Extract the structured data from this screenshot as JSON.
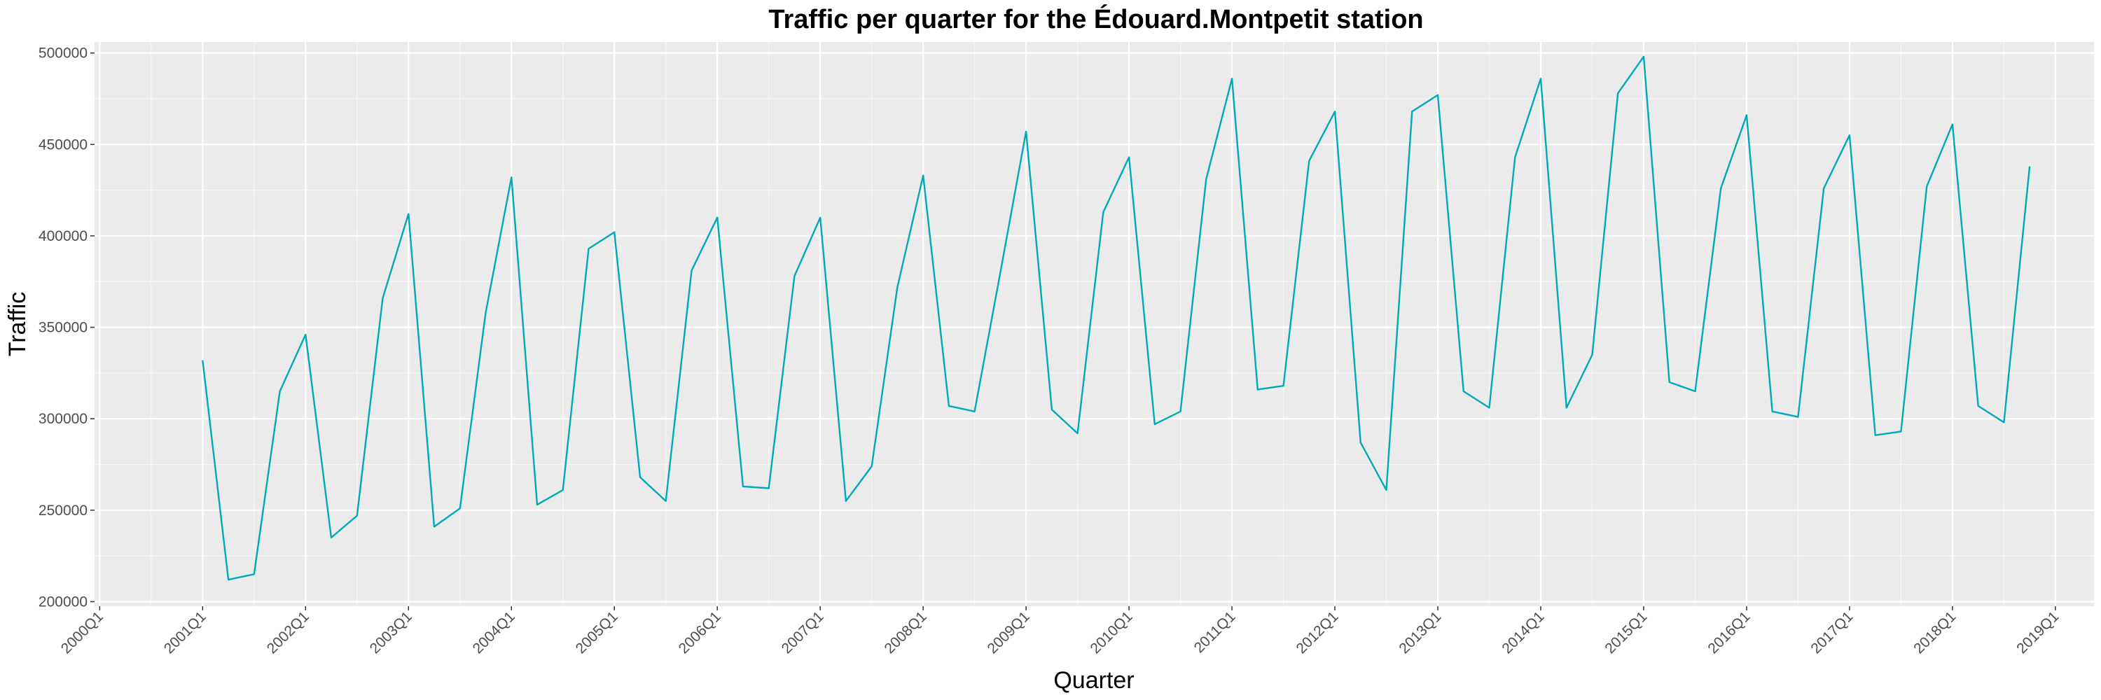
{
  "chart_data": {
    "type": "line",
    "title": "Traffic per quarter for the Édouard.Montpetit station",
    "xlabel": "Quarter",
    "ylabel": "Traffic",
    "ylim": [
      200000,
      500000
    ],
    "yticks": [
      200000,
      250000,
      300000,
      350000,
      400000,
      450000,
      500000
    ],
    "ytick_labels": [
      "200000",
      "250000",
      "300000",
      "350000",
      "400000",
      "450000",
      "500000"
    ],
    "xticks": [
      "2000Q1",
      "2001Q1",
      "2002Q1",
      "2003Q1",
      "2004Q1",
      "2005Q1",
      "2006Q1",
      "2007Q1",
      "2008Q1",
      "2009Q1",
      "2010Q1",
      "2011Q1",
      "2012Q1",
      "2013Q1",
      "2014Q1",
      "2015Q1",
      "2016Q1",
      "2017Q1",
      "2018Q1",
      "2019Q1"
    ],
    "grid": true,
    "legend": "none",
    "line_color": "#00a9b9",
    "panel_color": "#ebebeb",
    "x": [
      "2001Q1",
      "2001Q2",
      "2001Q3",
      "2001Q4",
      "2002Q1",
      "2002Q2",
      "2002Q3",
      "2002Q4",
      "2003Q1",
      "2003Q2",
      "2003Q3",
      "2003Q4",
      "2004Q1",
      "2004Q2",
      "2004Q3",
      "2004Q4",
      "2005Q1",
      "2005Q2",
      "2005Q3",
      "2005Q4",
      "2006Q1",
      "2006Q2",
      "2006Q3",
      "2006Q4",
      "2007Q1",
      "2007Q2",
      "2007Q3",
      "2007Q4",
      "2008Q1",
      "2008Q2",
      "2008Q3",
      "2008Q4",
      "2009Q1",
      "2009Q2",
      "2009Q3",
      "2009Q4",
      "2010Q1",
      "2010Q2",
      "2010Q3",
      "2010Q4",
      "2011Q1",
      "2011Q2",
      "2011Q3",
      "2011Q4",
      "2012Q1",
      "2012Q2",
      "2012Q3",
      "2012Q4",
      "2013Q1",
      "2013Q2",
      "2013Q3",
      "2013Q4",
      "2014Q1",
      "2014Q2",
      "2014Q3",
      "2014Q4",
      "2015Q1",
      "2015Q2",
      "2015Q3",
      "2015Q4",
      "2016Q1",
      "2016Q2",
      "2016Q3",
      "2016Q4",
      "2017Q1",
      "2017Q2",
      "2017Q3",
      "2017Q4",
      "2018Q1",
      "2018Q2",
      "2018Q3",
      "2018Q4"
    ],
    "series": [
      {
        "values": [
          332000,
          212000,
          215000,
          315000,
          346000,
          235000,
          247000,
          366000,
          412000,
          241000,
          251000,
          358000,
          432000,
          253000,
          261000,
          393000,
          402000,
          268000,
          255000,
          381000,
          410000,
          263000,
          262000,
          378000,
          410000,
          255000,
          274000,
          372000,
          433000,
          307000,
          304000,
          380000,
          457000,
          305000,
          292000,
          413000,
          443000,
          297000,
          304000,
          431000,
          486000,
          316000,
          318000,
          441000,
          468000,
          287000,
          261000,
          468000,
          477000,
          315000,
          306000,
          443000,
          486000,
          306000,
          335000,
          478000,
          498000,
          320000,
          315000,
          426000,
          466000,
          304000,
          301000,
          426000,
          455000,
          291000,
          293000,
          427000,
          461000,
          307000,
          298000,
          438000
        ]
      }
    ]
  }
}
